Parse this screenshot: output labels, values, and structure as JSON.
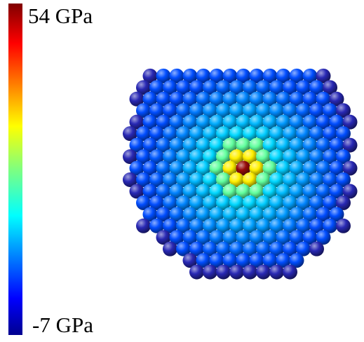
{
  "colorbar": {
    "max_label": "54 GPa",
    "min_label": "-7 GPa"
  }
}
